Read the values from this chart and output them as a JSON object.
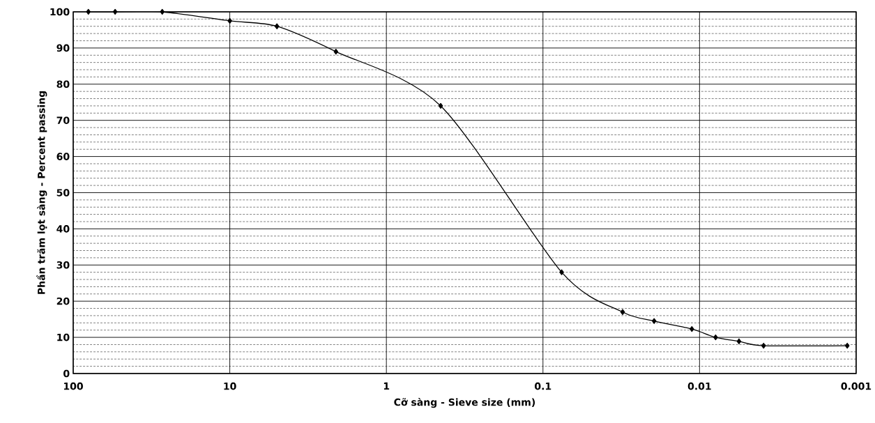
{
  "chart_data": {
    "type": "line",
    "xlabel": "Cỡ sàng - Sieve size (mm)",
    "ylabel": "Phần trăm lọt sàng - Percent passing",
    "x": [
      80,
      54,
      27,
      10,
      5.0,
      2.1,
      0.45,
      0.076,
      0.031,
      0.0195,
      0.0112,
      0.0079,
      0.0056,
      0.0039,
      0.00114
    ],
    "series": [
      {
        "color": "#000000",
        "values": [
          100,
          100,
          100,
          97.5,
          96,
          89,
          74,
          28,
          17,
          14.5,
          12.3,
          10,
          8.9,
          7.7,
          7.7
        ]
      }
    ],
    "log": "x",
    "xlim": [
      100,
      0.001
    ],
    "xticks": [
      100,
      10,
      1,
      0.1,
      0.01,
      0.001
    ],
    "ylim": [
      0,
      100
    ],
    "yticks": [
      0,
      10,
      20,
      30,
      40,
      50,
      60,
      70,
      80,
      90,
      100
    ],
    "grid": true,
    "marker": "diamond",
    "line_style": "solid"
  }
}
